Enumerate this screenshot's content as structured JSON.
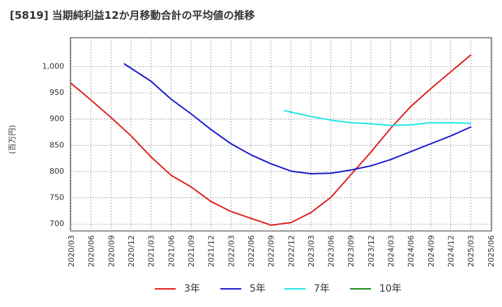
{
  "chart_data": {
    "type": "line",
    "title": "[5819]  当期純利益12か月移動合計の平均値の推移",
    "ylabel": "(百万円)",
    "ylim": [
      687,
      1055
    ],
    "yticks": [
      700,
      750,
      800,
      850,
      900,
      950,
      1000
    ],
    "ytick_labels": [
      "700",
      "750",
      "800",
      "850",
      "900",
      "950",
      "1,000"
    ],
    "x_ticks": [
      "2020/03",
      "2020/06",
      "2020/09",
      "2020/12",
      "2021/03",
      "2021/06",
      "2021/09",
      "2021/12",
      "2022/03",
      "2022/06",
      "2022/09",
      "2022/12",
      "2023/03",
      "2023/06",
      "2023/09",
      "2023/12",
      "2024/03",
      "2024/06",
      "2024/09",
      "2024/12",
      "2025/03",
      "2025/06"
    ],
    "grid": true,
    "legend_position": "bottom",
    "series": [
      {
        "name": "3年",
        "color": "#e02020",
        "points": [
          [
            "2020/03",
            968
          ],
          [
            "2020/06",
            936
          ],
          [
            "2020/09",
            903
          ],
          [
            "2020/12",
            868
          ],
          [
            "2021/03",
            828
          ],
          [
            "2021/06",
            793
          ],
          [
            "2021/09",
            771
          ],
          [
            "2021/12",
            743
          ],
          [
            "2022/03",
            724
          ],
          [
            "2022/06",
            711
          ],
          [
            "2022/09",
            698
          ],
          [
            "2022/12",
            703
          ],
          [
            "2023/03",
            722
          ],
          [
            "2023/06",
            751
          ],
          [
            "2023/09",
            794
          ],
          [
            "2023/12",
            837
          ],
          [
            "2024/03",
            883
          ],
          [
            "2024/06",
            924
          ],
          [
            "2024/09",
            958
          ],
          [
            "2024/12",
            990
          ],
          [
            "2025/03",
            1022
          ]
        ]
      },
      {
        "name": "5年",
        "color": "#1a1ad0",
        "points": [
          [
            "2020/11",
            1005
          ],
          [
            "2021/03",
            972
          ],
          [
            "2021/06",
            938
          ],
          [
            "2021/09",
            910
          ],
          [
            "2021/12",
            880
          ],
          [
            "2022/03",
            853
          ],
          [
            "2022/06",
            832
          ],
          [
            "2022/09",
            815
          ],
          [
            "2022/12",
            801
          ],
          [
            "2023/03",
            796
          ],
          [
            "2023/06",
            797
          ],
          [
            "2023/09",
            803
          ],
          [
            "2023/12",
            811
          ],
          [
            "2024/03",
            823
          ],
          [
            "2024/06",
            838
          ],
          [
            "2024/09",
            853
          ],
          [
            "2024/12",
            868
          ],
          [
            "2025/03",
            885
          ]
        ]
      },
      {
        "name": "7年",
        "color": "#22e6e6",
        "points": [
          [
            "2022/11",
            916
          ],
          [
            "2023/03",
            905
          ],
          [
            "2023/06",
            898
          ],
          [
            "2023/09",
            893
          ],
          [
            "2023/12",
            891
          ],
          [
            "2024/03",
            888
          ],
          [
            "2024/06",
            889
          ],
          [
            "2024/09",
            893
          ],
          [
            "2024/12",
            893
          ],
          [
            "2025/03",
            892
          ]
        ]
      },
      {
        "name": "10年",
        "color": "#1a8a1a",
        "points": []
      }
    ]
  }
}
